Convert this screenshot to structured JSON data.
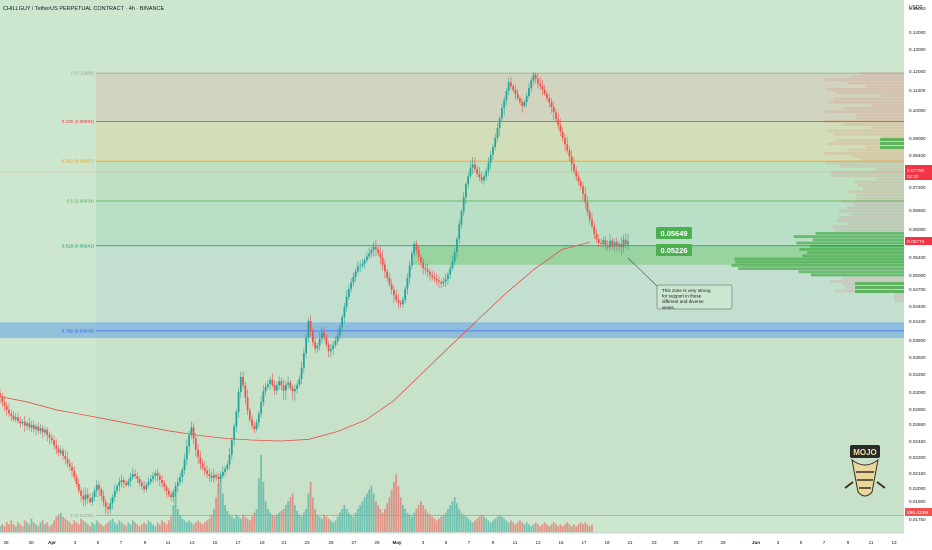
{
  "header": {
    "symbol_line": "CHILLGUY / TetherUS PERPETUAL CONTRACT · 4h · BINANCE"
  },
  "price_axis": {
    "currency": "USDT",
    "labels": [
      "0.15000",
      "0.14000",
      "0.13000",
      "0.12000",
      "0.11000",
      "0.10000",
      "0.09000",
      "0.08400",
      "0.07800",
      "0.07200",
      "0.06600",
      "0.06000",
      "0.05400",
      "0.05000",
      "0.04700",
      "0.04400",
      "0.04100",
      "0.03800",
      "0.03500",
      "0.03250",
      "0.03000",
      "0.02850",
      "0.02650",
      "0.02450",
      "0.02300",
      "0.02150",
      "0.02000",
      "0.01900",
      "0.01750"
    ],
    "current_price": "0.05774",
    "fib_tag_price": "0.07791",
    "fib_tag_timer": "02:32",
    "volume_tag": "285.423M"
  },
  "time_axis": {
    "labels": [
      "28",
      "30",
      "Apr",
      "3",
      "5",
      "7",
      "9",
      "11",
      "13",
      "15",
      "17",
      "19",
      "21",
      "23",
      "25",
      "27",
      "29",
      "May",
      "3",
      "5",
      "7",
      "9",
      "11",
      "13",
      "15",
      "17",
      "19",
      "21",
      "23",
      "25",
      "27",
      "29",
      "Jun",
      "3",
      "5",
      "7",
      "9",
      "11",
      "13"
    ]
  },
  "chart_data": {
    "type": "candlestick",
    "symbol": "CHILLGUY / TetherUS PERPETUAL CONTRACT",
    "timeframe": "4h",
    "exchange": "BINANCE",
    "y_unit": "USDT",
    "ylim": [
      0.0166,
      0.152
    ],
    "x_range": [
      "Mar 28",
      "Jun 14"
    ],
    "candle_closes": [
      0.0296,
      0.0291,
      0.0288,
      0.0284,
      0.0279,
      0.0276,
      0.0271,
      0.0274,
      0.0269,
      0.0266,
      0.0268,
      0.0263,
      0.0266,
      0.0261,
      0.0264,
      0.0259,
      0.0262,
      0.0257,
      0.026,
      0.0255,
      0.0258,
      0.0252,
      0.0249,
      0.0246,
      0.0241,
      0.0238,
      0.0234,
      0.0236,
      0.0231,
      0.0228,
      0.0224,
      0.0221,
      0.0217,
      0.0211,
      0.0204,
      0.0198,
      0.0194,
      0.0191,
      0.0195,
      0.0192,
      0.0189,
      0.0193,
      0.0198,
      0.0203,
      0.0199,
      0.0194,
      0.0189,
      0.0185,
      0.0183,
      0.0188,
      0.0193,
      0.0198,
      0.0202,
      0.0206,
      0.0208,
      0.0205,
      0.0203,
      0.0207,
      0.0211,
      0.0214,
      0.0212,
      0.0209,
      0.0205,
      0.0202,
      0.0199,
      0.0203,
      0.0206,
      0.0209,
      0.0212,
      0.0215,
      0.0212,
      0.0208,
      0.0205,
      0.0201,
      0.0198,
      0.0195,
      0.0193,
      0.0197,
      0.0202,
      0.0206,
      0.0211,
      0.0218,
      0.0228,
      0.024,
      0.0252,
      0.0261,
      0.0248,
      0.0237,
      0.023,
      0.0224,
      0.022,
      0.0217,
      0.0214,
      0.0212,
      0.021,
      0.0213,
      0.0211,
      0.0209,
      0.0212,
      0.0216,
      0.0219,
      0.0223,
      0.0232,
      0.0246,
      0.0262,
      0.0281,
      0.03,
      0.0321,
      0.0309,
      0.0295,
      0.0283,
      0.0271,
      0.0263,
      0.0259,
      0.0267,
      0.0279,
      0.0291,
      0.0301,
      0.0307,
      0.0311,
      0.0317,
      0.031,
      0.0302,
      0.0309,
      0.0315,
      0.0309,
      0.0302,
      0.031,
      0.0313,
      0.0306,
      0.0301,
      0.0304,
      0.031,
      0.0318,
      0.0334,
      0.0357,
      0.0384,
      0.041,
      0.0394,
      0.0376,
      0.0365,
      0.037,
      0.0382,
      0.0392,
      0.0385,
      0.0372,
      0.036,
      0.0364,
      0.0371,
      0.0378,
      0.0387,
      0.04,
      0.0418,
      0.0438,
      0.0456,
      0.047,
      0.0484,
      0.0496,
      0.0508,
      0.0519,
      0.0521,
      0.0525,
      0.0533,
      0.0541,
      0.0548,
      0.0555,
      0.0562,
      0.0557,
      0.0548,
      0.0539,
      0.0523,
      0.0508,
      0.0494,
      0.048,
      0.0469,
      0.0459,
      0.0451,
      0.0446,
      0.0443,
      0.0451,
      0.047,
      0.0494,
      0.0521,
      0.0548,
      0.0568,
      0.0556,
      0.054,
      0.0528,
      0.0515,
      0.0512,
      0.0507,
      0.05,
      0.0495,
      0.0492,
      0.0488,
      0.0485,
      0.0482,
      0.0486,
      0.0491,
      0.0501,
      0.0515,
      0.053,
      0.055,
      0.0578,
      0.0614,
      0.0655,
      0.0693,
      0.0733,
      0.077,
      0.08,
      0.081,
      0.0795,
      0.078,
      0.0765,
      0.075,
      0.0768,
      0.079,
      0.0815,
      0.084,
      0.0868,
      0.09,
      0.0935,
      0.097,
      0.101,
      0.105,
      0.1095,
      0.114,
      0.112,
      0.11,
      0.108,
      0.106,
      0.104,
      0.102,
      0.104,
      0.107,
      0.111,
      0.115,
      0.118,
      0.116,
      0.1135,
      0.112,
      0.11,
      0.108,
      0.106,
      0.1038,
      0.1015,
      0.0992,
      0.0968,
      0.0945,
      0.0922,
      0.09,
      0.0878,
      0.0856,
      0.0835,
      0.0812,
      0.079,
      0.0768,
      0.0746,
      0.0724,
      0.0702,
      0.068,
      0.0655,
      0.063,
      0.0609,
      0.059,
      0.0578,
      0.057,
      0.0568,
      0.0576,
      0.0566,
      0.0561,
      0.0575,
      0.0563,
      0.0572,
      0.0565,
      0.0568,
      0.0561,
      0.0577,
      0.0567,
      0.0574
    ],
    "fib_levels": [
      {
        "label": "0 (0.11888)",
        "ratio": 0,
        "price": 0.11888
      },
      {
        "label": "0.236 (0.09593)",
        "ratio": 0.236,
        "price": 0.09593
      },
      {
        "label": "0.382 (0.08207)",
        "ratio": 0.382,
        "price": 0.08207
      },
      {
        "label": "0.5 (0.06834)",
        "ratio": 0.5,
        "price": 0.06834
      },
      {
        "label": "0.618 (0.05641)",
        "ratio": 0.618,
        "price": 0.05641
      },
      {
        "label": "0.786 (0.03943)",
        "ratio": 0.786,
        "price": 0.03943
      },
      {
        "label": "1 (0.01780)",
        "ratio": 1,
        "price": 0.0178
      }
    ],
    "support_zone": {
      "label_top": "0.05649",
      "label_bottom": "0.05226",
      "top": 0.05649,
      "bottom": 0.05226
    },
    "blue_zone": {
      "top": 0.0408,
      "bottom": 0.0383
    },
    "annotation": "This zone is very strong for support in these different and diverse views.",
    "moving_average": [
      0.0296,
      0.0291,
      0.0284,
      0.0277,
      0.027,
      0.0263,
      0.0257,
      0.0252,
      0.0248,
      0.0246,
      0.0245,
      0.0247,
      0.0256,
      0.027,
      0.0292,
      0.0325,
      0.0368,
      0.0412,
      0.0462,
      0.0512,
      0.0556,
      0.0572
    ],
    "volume": [
      3,
      4,
      3,
      5,
      4,
      6,
      4,
      3,
      5,
      4,
      3,
      6,
      5,
      4,
      7,
      5,
      4,
      3,
      5,
      6,
      4,
      5,
      3,
      4,
      6,
      8,
      9,
      10,
      8,
      7,
      6,
      5,
      4,
      6,
      5,
      4,
      7,
      6,
      5,
      4,
      3,
      5,
      4,
      6,
      5,
      4,
      3,
      4,
      5,
      6,
      7,
      5,
      4,
      6,
      5,
      4,
      3,
      5,
      4,
      6,
      5,
      4,
      3,
      4,
      5,
      4,
      6,
      5,
      4,
      3,
      5,
      4,
      6,
      5,
      4,
      6,
      8,
      14,
      22,
      12,
      9,
      7,
      6,
      5,
      6,
      5,
      4,
      5,
      6,
      5,
      4,
      5,
      6,
      7,
      9,
      12,
      18,
      25,
      30,
      20,
      14,
      11,
      9,
      8,
      7,
      9,
      8,
      7,
      9,
      8,
      7,
      6,
      8,
      10,
      12,
      28,
      40,
      26,
      16,
      12,
      10,
      9,
      8,
      9,
      10,
      11,
      12,
      14,
      16,
      18,
      20,
      14,
      11,
      9,
      8,
      10,
      12,
      20,
      26,
      18,
      12,
      9,
      8,
      7,
      9,
      8,
      7,
      6,
      5,
      6,
      8,
      10,
      12,
      14,
      12,
      10,
      9,
      8,
      10,
      12,
      14,
      16,
      18,
      20,
      22,
      24,
      20,
      16,
      14,
      12,
      10,
      12,
      15,
      18,
      22,
      26,
      30,
      24,
      18,
      14,
      12,
      10,
      9,
      8,
      10,
      12,
      14,
      16,
      14,
      12,
      10,
      9,
      8,
      7,
      6,
      7,
      8,
      9,
      10,
      12,
      14,
      16,
      18,
      15,
      12,
      10,
      9,
      8,
      7,
      6,
      5,
      6,
      7,
      8,
      9,
      8,
      7,
      6,
      5,
      6,
      7,
      8,
      9,
      8,
      7,
      6,
      5,
      6,
      5,
      4,
      5,
      6,
      5,
      4,
      5,
      4,
      3,
      4,
      5,
      4,
      3,
      4,
      5,
      4,
      3,
      4,
      5,
      4,
      3,
      4,
      3,
      4,
      5,
      4,
      3,
      4,
      3,
      4,
      5,
      4,
      5,
      4,
      3,
      4
    ]
  },
  "logo": {
    "text": "MOJO"
  },
  "colors": {
    "bg_green": "#cde7ce",
    "bull": "#26a69a",
    "bear": "#ef5350",
    "fib_red": "#f23645",
    "fib_orange": "#ff9800",
    "fib_green": "#4caf50",
    "fib_teal": "#089981",
    "fib_blue": "#2962ff",
    "ma": "#e5534b"
  }
}
